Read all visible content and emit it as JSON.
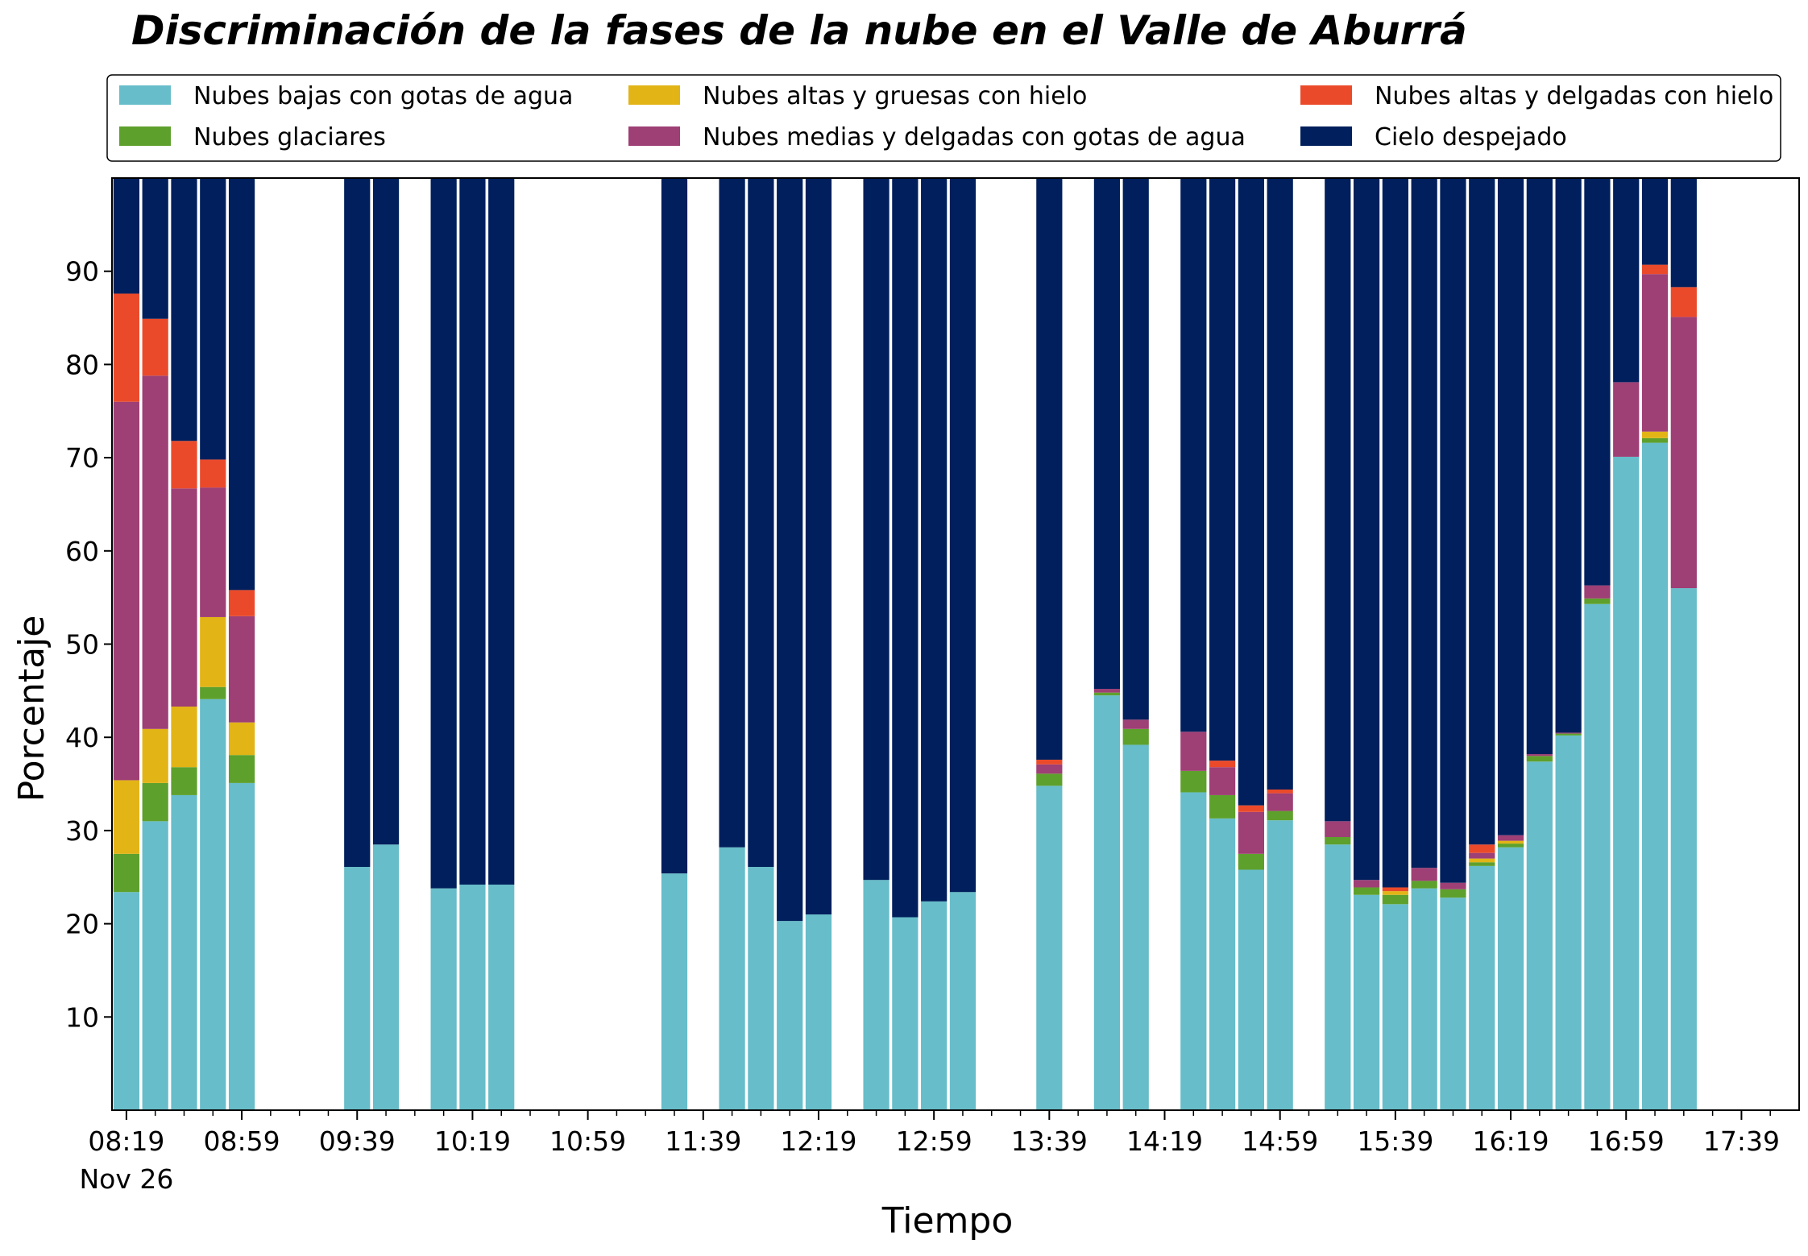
{
  "chart_data": {
    "type": "bar",
    "stacked": true,
    "title": "Discriminación de la fases de la nube en el Valle de Aburrá",
    "xlabel": "Tiempo",
    "ylabel": "Porcentaje",
    "ylim": [
      0,
      100
    ],
    "yticks": [
      10,
      20,
      30,
      40,
      50,
      60,
      70,
      80,
      90
    ],
    "xlim_minutes_since_0819": [
      -5,
      580
    ],
    "major_ticks": [
      {
        "t": 0,
        "label": "08:19",
        "sublabel": "Nov 26"
      },
      {
        "t": 40,
        "label": "08:59"
      },
      {
        "t": 80,
        "label": "09:39"
      },
      {
        "t": 120,
        "label": "10:19"
      },
      {
        "t": 160,
        "label": "10:59"
      },
      {
        "t": 200,
        "label": "11:39"
      },
      {
        "t": 240,
        "label": "12:19"
      },
      {
        "t": 280,
        "label": "12:59"
      },
      {
        "t": 320,
        "label": "13:39"
      },
      {
        "t": 360,
        "label": "14:19"
      },
      {
        "t": 400,
        "label": "14:59"
      },
      {
        "t": 440,
        "label": "15:39"
      },
      {
        "t": 480,
        "label": "16:19"
      },
      {
        "t": 520,
        "label": "16:59"
      },
      {
        "t": 560,
        "label": "17:39"
      }
    ],
    "grid": false,
    "legend": {
      "placement": "top",
      "columns": 3
    },
    "series_order": [
      "Nubes bajas con gotas de agua",
      "Nubes glaciares",
      "Nubes altas y gruesas con hielo",
      "Nubes medias y delgadas con gotas de agua",
      "Nubes altas y delgadas con hielo",
      "Cielo despejado"
    ],
    "legend_entries": [
      {
        "name": "Nubes bajas con gotas de agua",
        "color": "#67bdc9"
      },
      {
        "name": "Nubes glaciares",
        "color": "#5ea02c"
      },
      {
        "name": "Nubes altas y gruesas con hielo",
        "color": "#e2b416"
      },
      {
        "name": "Nubes medias y delgadas con gotas de agua",
        "color": "#9e3f75"
      },
      {
        "name": "Nubes altas y delgadas con hielo",
        "color": "#eb4a2a"
      },
      {
        "name": "Cielo despejado",
        "color": "#001f5c"
      }
    ],
    "bar_width_minutes": 9,
    "bars": [
      {
        "t": 0,
        "values": [
          23.4,
          4.1,
          7.9,
          40.6,
          11.6,
          12.4
        ]
      },
      {
        "t": 10,
        "values": [
          31.0,
          4.1,
          5.8,
          37.9,
          6.1,
          15.1
        ]
      },
      {
        "t": 20,
        "values": [
          33.8,
          3.0,
          6.5,
          23.4,
          5.1,
          28.2
        ]
      },
      {
        "t": 30,
        "values": [
          44.1,
          1.3,
          7.5,
          13.9,
          3.0,
          30.2
        ]
      },
      {
        "t": 40,
        "values": [
          35.1,
          3.0,
          3.5,
          11.4,
          2.8,
          44.2
        ]
      },
      {
        "t": 80,
        "values": [
          26.1,
          0,
          0,
          0,
          0,
          73.9
        ]
      },
      {
        "t": 90,
        "values": [
          28.5,
          0,
          0,
          0,
          0,
          71.5
        ]
      },
      {
        "t": 110,
        "values": [
          23.8,
          0,
          0,
          0,
          0,
          76.2
        ]
      },
      {
        "t": 120,
        "values": [
          24.2,
          0,
          0,
          0,
          0,
          75.8
        ]
      },
      {
        "t": 130,
        "values": [
          24.2,
          0,
          0,
          0,
          0,
          75.8
        ]
      },
      {
        "t": 190,
        "values": [
          25.4,
          0,
          0,
          0,
          0,
          74.6
        ]
      },
      {
        "t": 210,
        "values": [
          28.2,
          0,
          0,
          0,
          0,
          71.8
        ]
      },
      {
        "t": 220,
        "values": [
          26.1,
          0,
          0,
          0,
          0,
          73.9
        ]
      },
      {
        "t": 230,
        "values": [
          20.3,
          0,
          0,
          0,
          0,
          79.7
        ]
      },
      {
        "t": 240,
        "values": [
          21.0,
          0,
          0,
          0,
          0,
          79.0
        ]
      },
      {
        "t": 260,
        "values": [
          24.7,
          0,
          0,
          0,
          0,
          75.3
        ]
      },
      {
        "t": 270,
        "values": [
          20.7,
          0,
          0,
          0,
          0,
          79.3
        ]
      },
      {
        "t": 280,
        "values": [
          22.4,
          0,
          0,
          0,
          0,
          77.6
        ]
      },
      {
        "t": 290,
        "values": [
          23.4,
          0,
          0,
          0,
          0,
          76.6
        ]
      },
      {
        "t": 320,
        "values": [
          34.8,
          1.3,
          0,
          1.0,
          0.5,
          62.4
        ]
      },
      {
        "t": 340,
        "values": [
          44.5,
          0.3,
          0,
          0.4,
          0,
          54.8
        ]
      },
      {
        "t": 350,
        "values": [
          39.2,
          1.7,
          0,
          1.0,
          0,
          58.1
        ]
      },
      {
        "t": 370,
        "values": [
          34.1,
          2.3,
          0,
          4.2,
          0,
          59.4
        ]
      },
      {
        "t": 380,
        "values": [
          31.3,
          2.5,
          0,
          3.0,
          0.7,
          62.5
        ]
      },
      {
        "t": 390,
        "values": [
          25.8,
          1.7,
          0,
          4.5,
          0.7,
          67.3
        ]
      },
      {
        "t": 400,
        "values": [
          31.1,
          1.0,
          0,
          1.9,
          0.4,
          65.6
        ]
      },
      {
        "t": 420,
        "values": [
          28.5,
          0.8,
          0,
          1.7,
          0,
          69.0
        ]
      },
      {
        "t": 430,
        "values": [
          23.1,
          0.8,
          0,
          0.8,
          0,
          75.3
        ]
      },
      {
        "t": 440,
        "values": [
          22.1,
          1.0,
          0.4,
          0,
          0.4,
          76.1
        ]
      },
      {
        "t": 450,
        "values": [
          23.8,
          0.8,
          0,
          1.4,
          0,
          74.0
        ]
      },
      {
        "t": 460,
        "values": [
          22.8,
          0.9,
          0,
          0.7,
          0,
          75.6
        ]
      },
      {
        "t": 470,
        "values": [
          26.2,
          0.4,
          0.4,
          0.6,
          0.9,
          71.5
        ]
      },
      {
        "t": 480,
        "values": [
          28.2,
          0.4,
          0.3,
          0.6,
          0,
          70.5
        ]
      },
      {
        "t": 490,
        "values": [
          37.4,
          0.6,
          0,
          0.2,
          0,
          61.8
        ]
      },
      {
        "t": 500,
        "values": [
          40.2,
          0.2,
          0,
          0.1,
          0,
          59.5
        ]
      },
      {
        "t": 510,
        "values": [
          54.3,
          0.6,
          0,
          1.4,
          0,
          43.7
        ]
      },
      {
        "t": 520,
        "values": [
          70.1,
          0,
          0,
          8.0,
          0,
          21.9
        ]
      },
      {
        "t": 530,
        "values": [
          71.6,
          0.5,
          0.7,
          16.9,
          1.0,
          9.3
        ]
      },
      {
        "t": 540,
        "values": [
          56.0,
          0,
          0,
          29.1,
          3.2,
          11.7
        ]
      }
    ]
  }
}
